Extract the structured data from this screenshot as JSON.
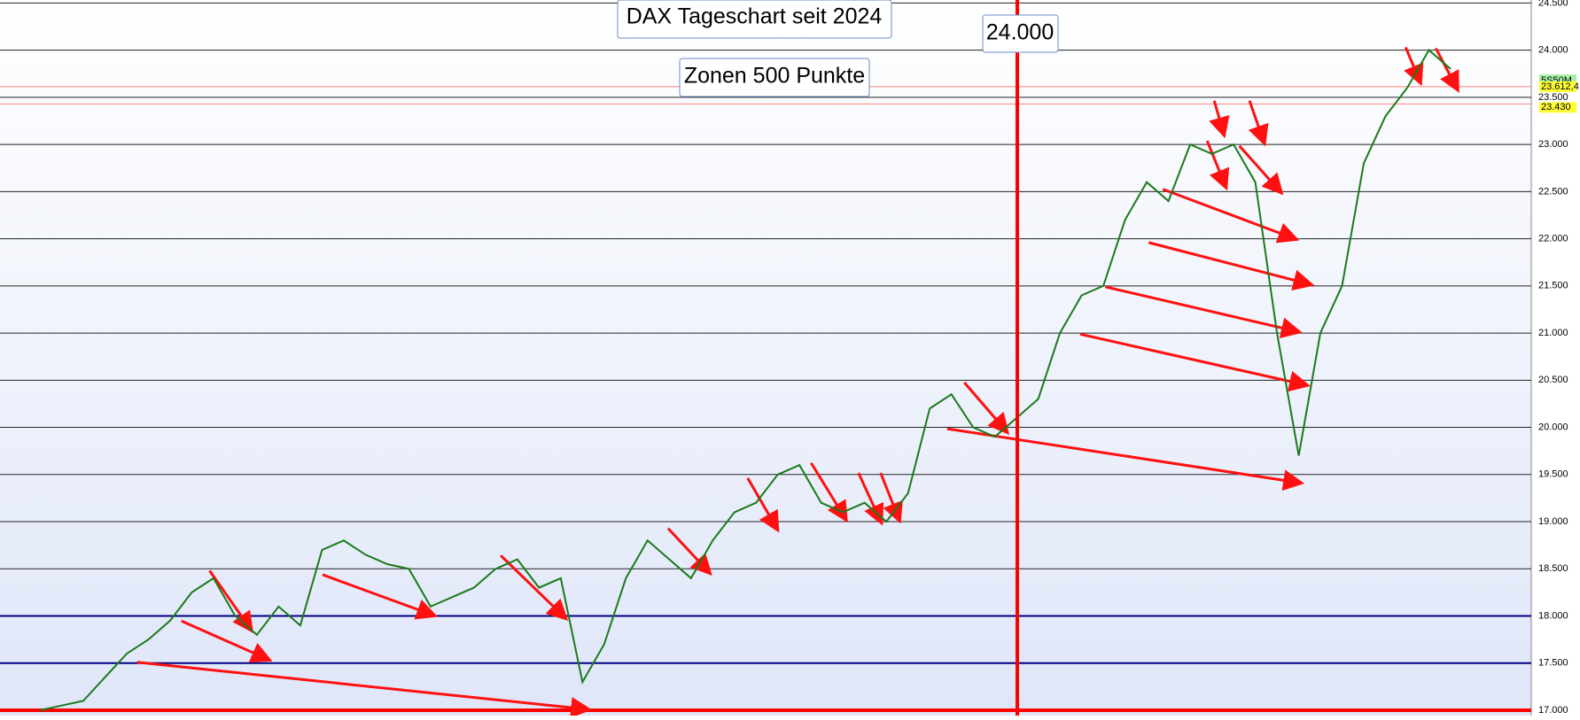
{
  "chart_data": {
    "type": "line",
    "title": "DAX Tageschart seit 2024",
    "subtitle": "Zonen 500 Punkte",
    "annotation": "24.000",
    "symbol": "5S50M",
    "color": "#1a7a1a",
    "values": [
      17000,
      17050,
      17100,
      17350,
      17600,
      17750,
      17950,
      18250,
      18400,
      18000,
      17800,
      18100,
      17900,
      18700,
      18800,
      18650,
      18550,
      18500,
      18100,
      18200,
      18300,
      18500,
      18600,
      18300,
      18400,
      17300,
      17700,
      18400,
      18800,
      18600,
      18400,
      18800,
      19100,
      19200,
      19500,
      19600,
      19200,
      19100,
      19200,
      19000,
      19300,
      20200,
      20350,
      20000,
      19900,
      20100,
      20300,
      21000,
      21400,
      21500,
      22200,
      22600,
      22400,
      23000,
      22900,
      23000,
      22600,
      21000,
      19700,
      21000,
      21500,
      22800,
      23300,
      23600,
      24000,
      23800
    ],
    "ylim": [
      17000,
      24500
    ],
    "yticks": [
      {
        "value": 17000,
        "label": "17.000"
      },
      {
        "value": 17500,
        "label": "17.500"
      },
      {
        "value": 18000,
        "label": "18.000"
      },
      {
        "value": 18500,
        "label": "18.500"
      },
      {
        "value": 19000,
        "label": "19.000"
      },
      {
        "value": 19500,
        "label": "19.500"
      },
      {
        "value": 20000,
        "label": "20.000"
      },
      {
        "value": 20500,
        "label": "20.500"
      },
      {
        "value": 21000,
        "label": "21.000"
      },
      {
        "value": 21500,
        "label": "21.500"
      },
      {
        "value": 22000,
        "label": "22.000"
      },
      {
        "value": 22500,
        "label": "22.500"
      },
      {
        "value": 23000,
        "label": "23.000"
      },
      {
        "value": 23500,
        "label": "23.500"
      },
      {
        "value": 24000,
        "label": "24.000"
      },
      {
        "value": 24500,
        "label": "24.500"
      }
    ],
    "grid": true,
    "highlight_levels": [
      {
        "value": 17000,
        "color": "#ff0000"
      },
      {
        "value": 17500,
        "color": "#000080"
      },
      {
        "value": 18000,
        "color": "#000080"
      }
    ],
    "price_markers": [
      {
        "value": 23612.4,
        "label": "23.612,4",
        "color": "#ffff33"
      },
      {
        "value": 23430,
        "label": "23.430",
        "color": "#ffff33"
      }
    ]
  }
}
